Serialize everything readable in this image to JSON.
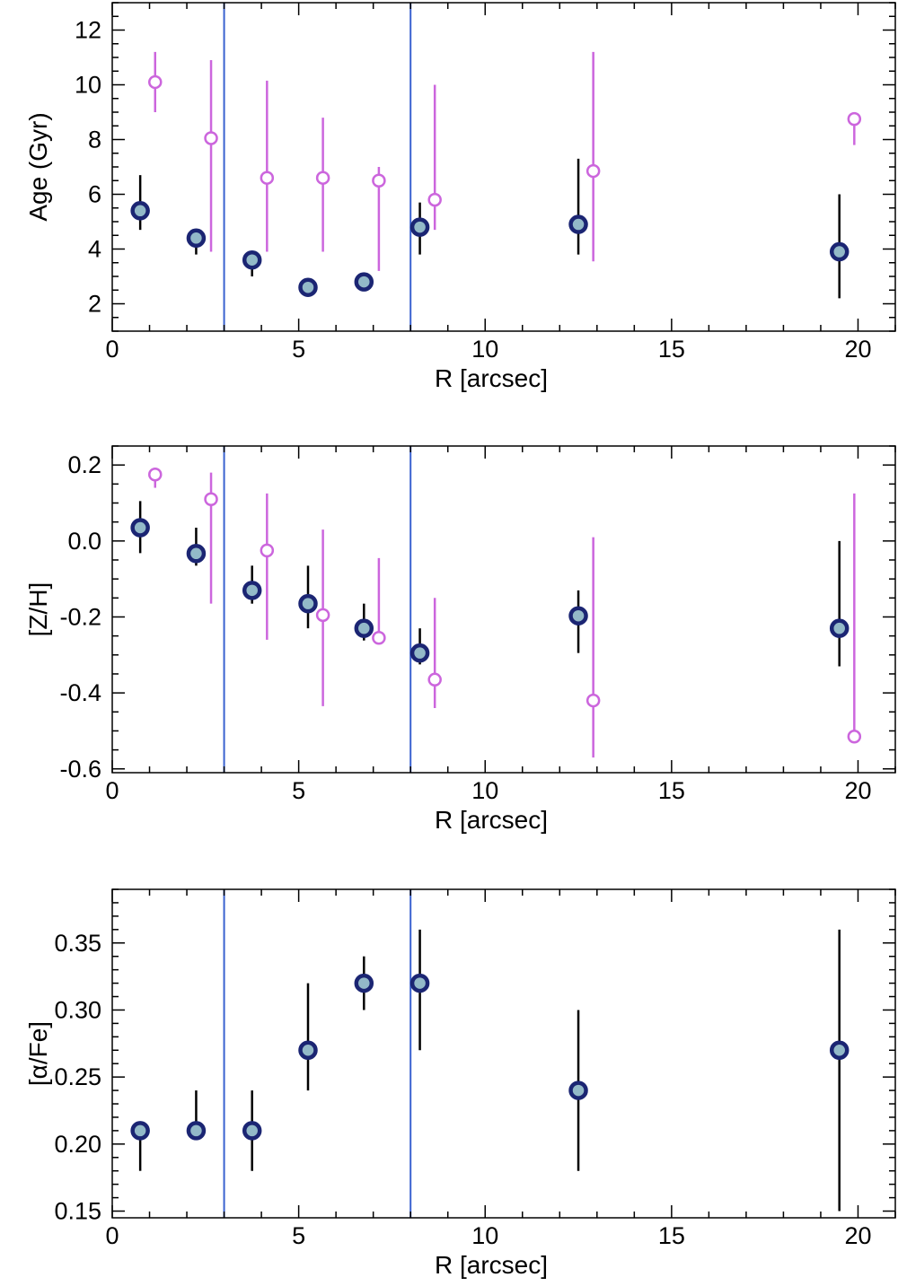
{
  "colors": {
    "filled_edge": "#1b2573",
    "filled_face": "#93b9c8",
    "filled_err": "#000000",
    "open_marker": "#cc66dd",
    "vline": "#3a62d0",
    "axis": "#000000"
  },
  "chart_data": [
    {
      "type": "scatter",
      "id": "age",
      "xlabel": "R [arcsec]",
      "ylabel": "Age (Gyr)",
      "xlim": [
        0,
        21
      ],
      "ylim": [
        1,
        13
      ],
      "xticks": [
        0,
        5,
        10,
        15,
        20
      ],
      "yticks": [
        2,
        4,
        6,
        8,
        10,
        12
      ],
      "ytick_labels": [
        "2",
        "4",
        "6",
        "8",
        "10",
        "12"
      ],
      "xminor": 1,
      "yminor": 0.5,
      "vlines": [
        3,
        8
      ],
      "series": [
        {
          "name": "filled",
          "style": "filled",
          "x": [
            0.75,
            2.25,
            3.75,
            5.25,
            6.75,
            8.25,
            12.5,
            19.5
          ],
          "y": [
            5.4,
            4.4,
            3.6,
            2.6,
            2.8,
            4.8,
            4.9,
            3.9
          ],
          "err_low": [
            4.7,
            3.8,
            3.0,
            2.3,
            2.5,
            3.8,
            3.8,
            2.2
          ],
          "err_high": [
            6.7,
            4.6,
            3.8,
            2.9,
            3.1,
            5.7,
            7.3,
            6.0
          ]
        },
        {
          "name": "open",
          "style": "open",
          "x": [
            1.15,
            2.65,
            4.15,
            5.65,
            7.15,
            8.65,
            12.9,
            19.9
          ],
          "y": [
            10.1,
            8.05,
            6.6,
            6.6,
            6.5,
            5.8,
            6.85,
            8.75
          ],
          "err_low": [
            9.0,
            3.9,
            3.9,
            3.9,
            3.2,
            4.7,
            3.55,
            7.8
          ],
          "err_high": [
            11.2,
            10.9,
            10.15,
            8.8,
            7.0,
            10.0,
            11.2,
            8.8
          ]
        }
      ]
    },
    {
      "type": "scatter",
      "id": "zh",
      "xlabel": "R [arcsec]",
      "ylabel": "[Z/H]",
      "xlim": [
        0,
        21
      ],
      "ylim": [
        -0.61,
        0.25
      ],
      "xticks": [
        0,
        5,
        10,
        15,
        20
      ],
      "yticks": [
        -0.6,
        -0.4,
        -0.2,
        0.0,
        0.2
      ],
      "ytick_labels": [
        "-0.6",
        "-0.4",
        "-0.2",
        "0.0",
        "0.2"
      ],
      "xminor": 1,
      "yminor": 0.05,
      "vlines": [
        3,
        8
      ],
      "series": [
        {
          "name": "filled",
          "style": "filled",
          "x": [
            0.75,
            2.25,
            3.75,
            5.25,
            6.75,
            8.25,
            12.5,
            19.5
          ],
          "y": [
            0.035,
            -0.033,
            -0.13,
            -0.165,
            -0.23,
            -0.295,
            -0.197,
            -0.23
          ],
          "err_low": [
            -0.032,
            -0.065,
            -0.165,
            -0.23,
            -0.262,
            -0.325,
            -0.295,
            -0.33
          ],
          "err_high": [
            0.105,
            0.035,
            -0.065,
            -0.065,
            -0.165,
            -0.23,
            -0.13,
            0.0
          ]
        },
        {
          "name": "open",
          "style": "open",
          "x": [
            1.15,
            2.65,
            4.15,
            5.65,
            7.15,
            8.65,
            12.9,
            19.9
          ],
          "y": [
            0.175,
            0.11,
            -0.025,
            -0.195,
            -0.255,
            -0.365,
            -0.42,
            -0.515
          ],
          "err_low": [
            0.14,
            -0.165,
            -0.26,
            -0.435,
            -0.26,
            -0.44,
            -0.57,
            -0.52
          ],
          "err_high": [
            0.175,
            0.18,
            0.125,
            0.03,
            -0.045,
            -0.15,
            0.01,
            0.125
          ]
        }
      ]
    },
    {
      "type": "scatter",
      "id": "afe",
      "xlabel": "R [arcsec]",
      "ylabel": "[α/Fe]",
      "xlim": [
        0,
        21
      ],
      "ylim": [
        0.145,
        0.39
      ],
      "xticks": [
        0,
        5,
        10,
        15,
        20
      ],
      "yticks": [
        0.15,
        0.2,
        0.25,
        0.3,
        0.35
      ],
      "ytick_labels": [
        "0.15",
        "0.20",
        "0.25",
        "0.30",
        "0.35"
      ],
      "xminor": 1,
      "yminor": 0.01,
      "vlines": [
        3,
        8
      ],
      "series": [
        {
          "name": "filled",
          "style": "filled",
          "x": [
            0.75,
            2.25,
            3.75,
            5.25,
            6.75,
            8.25,
            12.5,
            19.5
          ],
          "y": [
            0.21,
            0.21,
            0.21,
            0.27,
            0.32,
            0.32,
            0.24,
            0.27
          ],
          "err_low": [
            0.18,
            0.21,
            0.18,
            0.24,
            0.3,
            0.27,
            0.18,
            0.15
          ],
          "err_high": [
            0.21,
            0.24,
            0.24,
            0.32,
            0.34,
            0.36,
            0.3,
            0.36
          ]
        }
      ]
    }
  ]
}
